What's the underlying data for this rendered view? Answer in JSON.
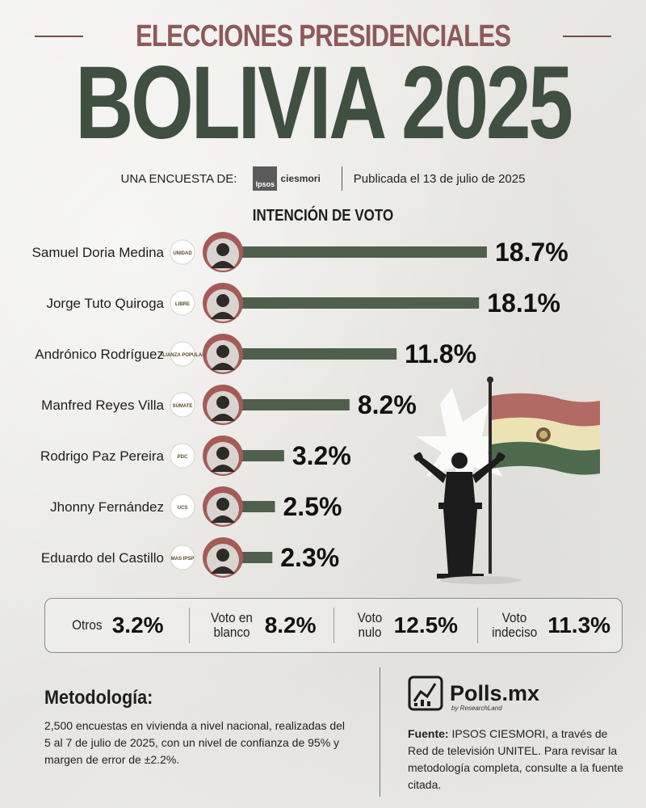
{
  "header": {
    "supertitle": "ELECCIONES PRESIDENCIALES",
    "title": "BOLIVIA 2025",
    "byline_prefix": "UNA ENCUESTA DE:",
    "pollster_logo_box": "Ipsos",
    "pollster_logo_name": "ciesmori",
    "published": "Publicada el 13 de julio de 2025"
  },
  "chart_data": {
    "type": "bar",
    "orientation": "horizontal",
    "title": "INTENCIÓN DE VOTO",
    "unit": "%",
    "categories": [
      "Samuel Doria Medina",
      "Jorge Tuto Quiroga",
      "Andrónico Rodríguez",
      "Manfred Reyes Villa",
      "Rodrigo Paz Pereira",
      "Jhonny Fernández",
      "Eduardo del Castillo"
    ],
    "values": [
      18.7,
      18.1,
      11.8,
      8.2,
      3.2,
      2.5,
      2.3
    ],
    "value_labels": [
      "18.7%",
      "18.1%",
      "11.8%",
      "8.2%",
      "3.2%",
      "2.5%",
      "2.3%"
    ],
    "party_logos": [
      "UNIDAD",
      "LIBRE",
      "ALIANZA POPULAR",
      "SÚMATE",
      "PDC",
      "UCS",
      "MAS IPSP"
    ],
    "bar_color": "#4f5f4c",
    "avatar_ring_color": "#a45b56"
  },
  "summary": [
    {
      "label": "Otros",
      "value": "3.2%"
    },
    {
      "label": "Voto en blanco",
      "value": "8.2%"
    },
    {
      "label": "Voto nulo",
      "value": "12.5%"
    },
    {
      "label": "Voto indeciso",
      "value": "11.3%"
    }
  ],
  "methodology": {
    "title": "Metodología:",
    "body": "2,500 encuestas en vivienda a nivel nacional, realizadas del 5 al 7 de julio de 2025, con un nivel de confianza de 95% y margen de error de ±2.2%."
  },
  "brand": {
    "name": "Polls.mx",
    "sub": "by ResearchLand"
  },
  "source": {
    "label": "Fuente:",
    "text": "IPSOS CIESMORI, a través de Red de televisión UNITEL. Para revisar la metodología completa, consulte a la fuente citada."
  },
  "colors": {
    "title_green": "#3f4f40",
    "supertitle_red": "#8e5959",
    "flag_red": "#b26a64",
    "flag_yellow": "#ece3b4",
    "flag_green": "#4d6a4f"
  },
  "icons": [
    "pollster-logo",
    "party-logo",
    "candidate-avatar",
    "podium-speaker-illustration",
    "bolivia-flag",
    "polls-chart-icon"
  ]
}
